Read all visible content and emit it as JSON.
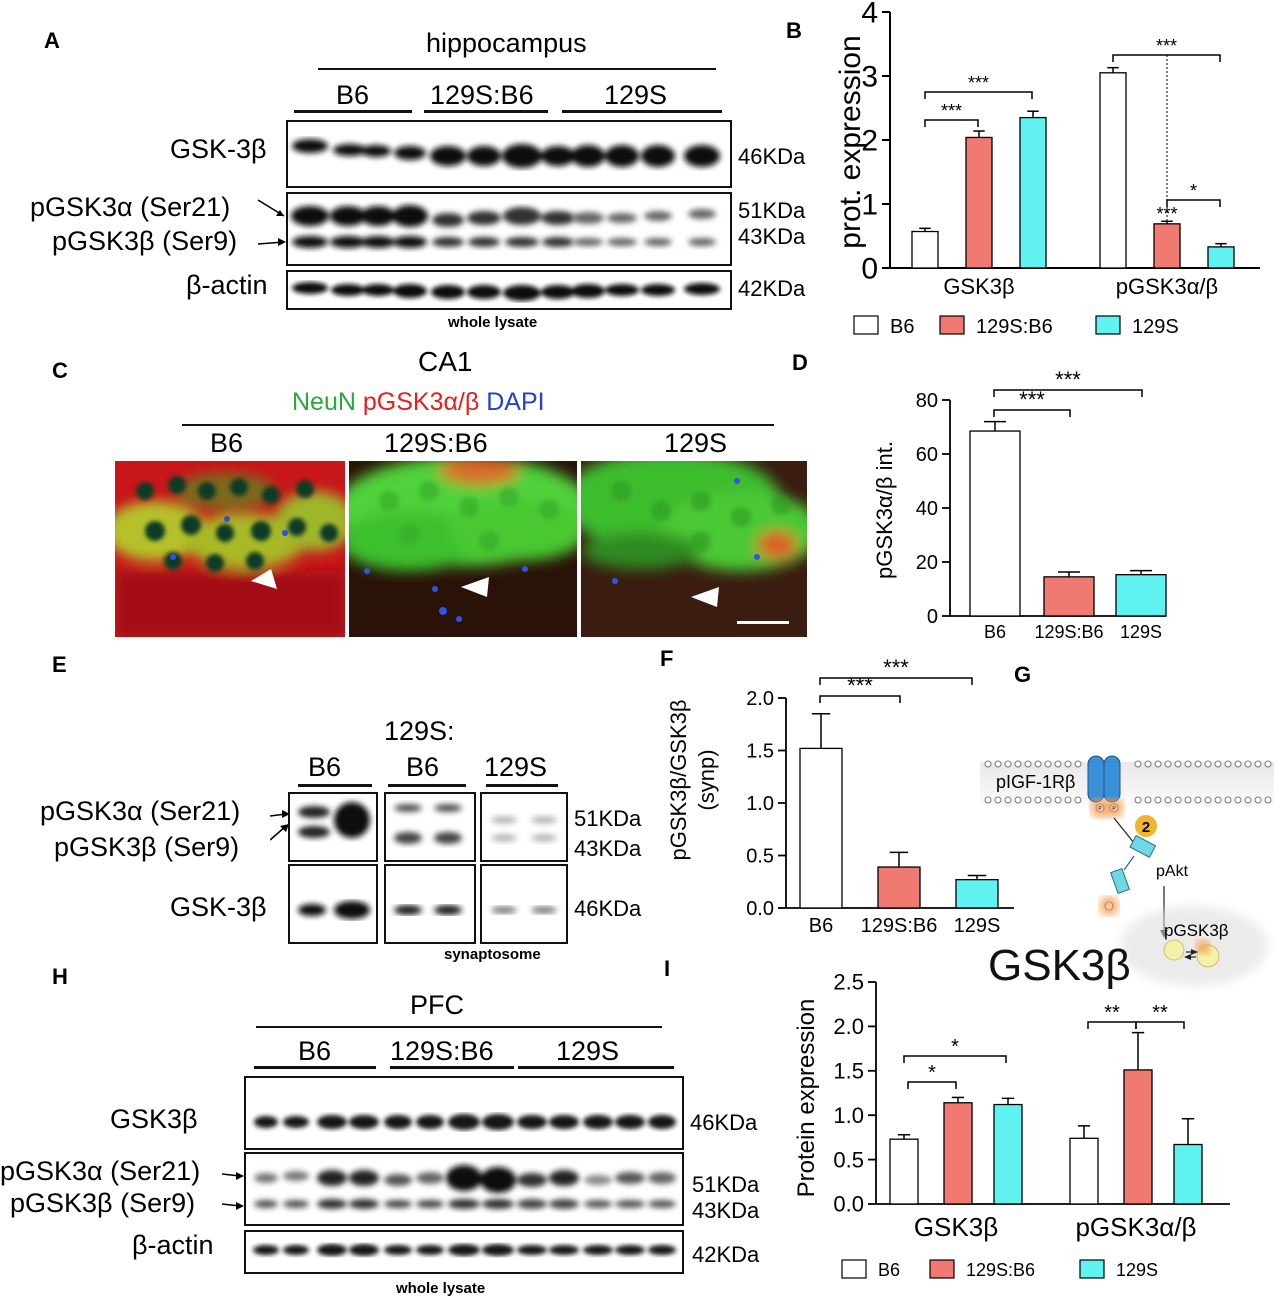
{
  "panels": {
    "A": "A",
    "B": "B",
    "C": "C",
    "D": "D",
    "E": "E",
    "F": "F",
    "G": "G",
    "H": "H",
    "I": "I"
  },
  "panelA": {
    "region": "hippocampus",
    "groups": [
      "B6",
      "129S:B6",
      "129S"
    ],
    "rows": [
      "GSK-3β",
      "pGSK3α (Ser21)",
      "pGSK3β (Ser9)",
      "β-actin"
    ],
    "weights": [
      "46KDa",
      "51KDa",
      "43KDa",
      "42KDa"
    ],
    "footer": "whole lysate"
  },
  "panelC": {
    "region": "CA1",
    "stain1": "NeuN",
    "stain2": "pGSK3α/β",
    "stain3": "DAPI",
    "groups": [
      "B6",
      "129S:B6",
      "129S"
    ],
    "colors": {
      "neun": "#2ca83a",
      "pgsk": "#e3201b",
      "dapi": "#1f3fd6"
    }
  },
  "panelE": {
    "groups_line1": "129S:",
    "groups": [
      "B6",
      "B6",
      "129S"
    ],
    "rows": [
      "pGSK3α (Ser21)",
      "pGSK3β (Ser9)",
      "GSK-3β"
    ],
    "weights": [
      "51KDa",
      "43KDa",
      "46KDa"
    ],
    "footer": "synaptosome"
  },
  "panelG": {
    "receptor": "pIGF-1Rβ",
    "step": "2",
    "kinase": "pAkt",
    "product": "pGSK3β",
    "main": "GSK3β",
    "p": "P"
  },
  "panelH": {
    "region": "PFC",
    "groups": [
      "B6",
      "129S:B6",
      "129S"
    ],
    "rows": [
      "GSK3β",
      "pGSK3α (Ser21)",
      "pGSK3β (Ser9)",
      "β-actin"
    ],
    "weights": [
      "46KDa",
      "51KDa",
      "43KDa",
      "42KDa"
    ],
    "footer": "whole lysate"
  },
  "chart_data": [
    {
      "id": "B",
      "type": "bar",
      "ylabel": "prot. expression",
      "ylim": [
        0,
        4
      ],
      "yticks": [
        "0",
        "1",
        "2",
        "3",
        "4"
      ],
      "categories": [
        "GSK3β",
        "pGSK3α/β"
      ],
      "series": [
        {
          "name": "B6",
          "color": "#ffffff",
          "values": [
            0.57,
            3.05
          ],
          "errors": [
            0.05,
            0.08
          ]
        },
        {
          "name": "129S:B6",
          "color": "#f07a72",
          "values": [
            2.04,
            0.69
          ],
          "errors": [
            0.1,
            0.04
          ]
        },
        {
          "name": "129S",
          "color": "#5ff2f0",
          "values": [
            2.35,
            0.33
          ],
          "errors": [
            0.1,
            0.05
          ]
        }
      ],
      "sig": [
        "***",
        "***",
        "***",
        "***",
        "*"
      ]
    },
    {
      "id": "D",
      "type": "bar",
      "ylabel": "pGSK3α/β int.",
      "ylim": [
        0,
        80
      ],
      "yticks": [
        "0",
        "20",
        "40",
        "60",
        "80"
      ],
      "categories": [
        "B6",
        "129S:B6",
        "129S"
      ],
      "values": [
        68.5,
        14.5,
        15.3
      ],
      "errors": [
        3.5,
        1.8,
        1.5
      ],
      "colors": [
        "#ffffff",
        "#f07a72",
        "#5ff2f0"
      ],
      "sig": [
        "***",
        "***"
      ]
    },
    {
      "id": "F",
      "type": "bar",
      "ylabel": "pGSK3β/GSK3β",
      "ylabel2": "(synp)",
      "ylim": [
        0,
        2.0
      ],
      "yticks": [
        "0.0",
        "0.5",
        "1.0",
        "1.5",
        "2.0"
      ],
      "categories": [
        "B6",
        "129S:B6",
        "129S"
      ],
      "values": [
        1.52,
        0.39,
        0.27
      ],
      "errors": [
        0.33,
        0.14,
        0.04
      ],
      "colors": [
        "#ffffff",
        "#f07a72",
        "#5ff2f0"
      ],
      "sig": [
        "***",
        "***"
      ]
    },
    {
      "id": "I",
      "type": "bar",
      "ylabel": "Protein expression",
      "ylim": [
        0,
        2.5
      ],
      "yticks": [
        "0.0",
        "0.5",
        "1.0",
        "1.5",
        "2.0",
        "2.5"
      ],
      "categories": [
        "GSK3β",
        "pGSK3α/β"
      ],
      "series": [
        {
          "name": "B6",
          "color": "#ffffff",
          "values": [
            0.73,
            0.74
          ],
          "errors": [
            0.05,
            0.14
          ]
        },
        {
          "name": "129S:B6",
          "color": "#f07a72",
          "values": [
            1.14,
            1.51
          ],
          "errors": [
            0.06,
            0.42
          ]
        },
        {
          "name": "129S",
          "color": "#5ff2f0",
          "values": [
            1.12,
            0.67
          ],
          "errors": [
            0.07,
            0.29
          ]
        }
      ],
      "sig": [
        "*",
        "*",
        "**",
        "**"
      ]
    }
  ]
}
